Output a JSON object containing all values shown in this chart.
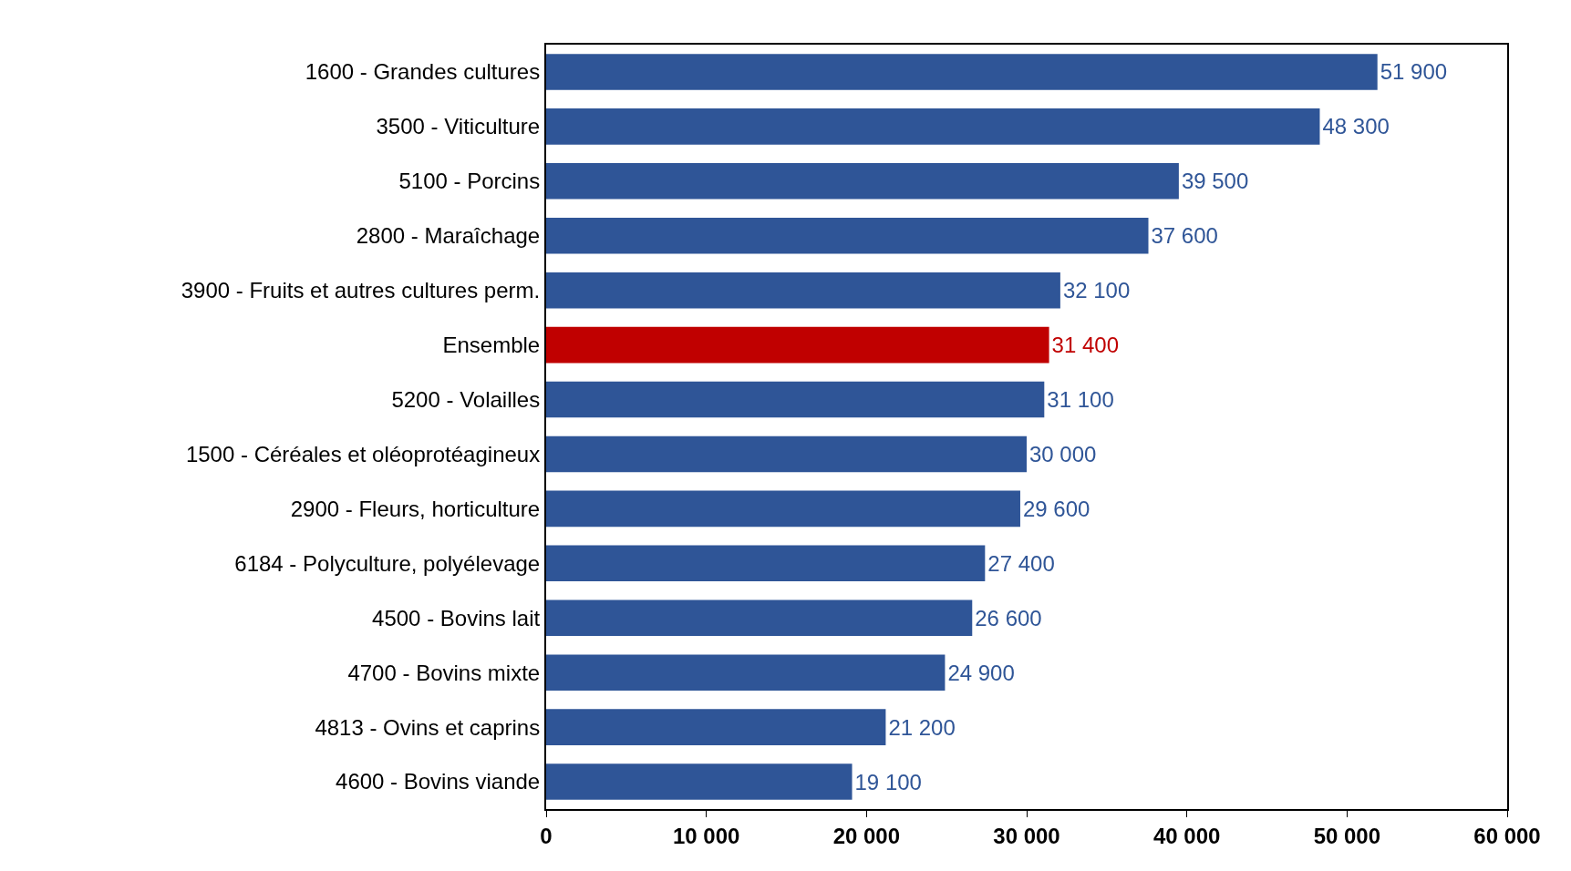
{
  "chart_data": {
    "type": "bar",
    "orientation": "horizontal",
    "categories": [
      "1600 - Grandes cultures",
      "3500 - Viticulture",
      "5100 - Porcins",
      "2800 - Maraîchage",
      "3900 - Fruits et autres cultures perm.",
      "Ensemble",
      "5200 - Volailles",
      "1500 - Céréales et oléoprotéagineux",
      "2900 - Fleurs, horticulture",
      "6184 - Polyculture, polyélevage",
      "4500 - Bovins lait",
      "4700 - Bovins mixte",
      "4813 - Ovins et caprins",
      "4600 - Bovins viande"
    ],
    "values": [
      51900,
      48300,
      39500,
      37600,
      32100,
      31400,
      31100,
      30000,
      29600,
      27400,
      26600,
      24900,
      21200,
      19100
    ],
    "value_labels": [
      "51 900",
      "48 300",
      "39 500",
      "37 600",
      "32 100",
      "31 400",
      "31 100",
      "30 000",
      "29 600",
      "27 400",
      "26 600",
      "24 900",
      "21 200",
      "19 100"
    ],
    "colors": [
      "#2f5597",
      "#2f5597",
      "#2f5597",
      "#2f5597",
      "#2f5597",
      "#c00000",
      "#2f5597",
      "#2f5597",
      "#2f5597",
      "#2f5597",
      "#2f5597",
      "#2f5597",
      "#2f5597",
      "#2f5597"
    ],
    "xlim": [
      0,
      60000
    ],
    "xticks": [
      0,
      {
        "value": 10000,
        "label": "10 000"
      },
      {
        "value": 20000,
        "label": "20 000"
      },
      {
        "value": 30000,
        "label": "30 000"
      },
      {
        "value": 40000,
        "label": "40 000"
      },
      {
        "value": 50000,
        "label": "50 000"
      },
      {
        "value": 60000,
        "label": "60 000"
      }
    ],
    "grid": false,
    "legend": false
  }
}
